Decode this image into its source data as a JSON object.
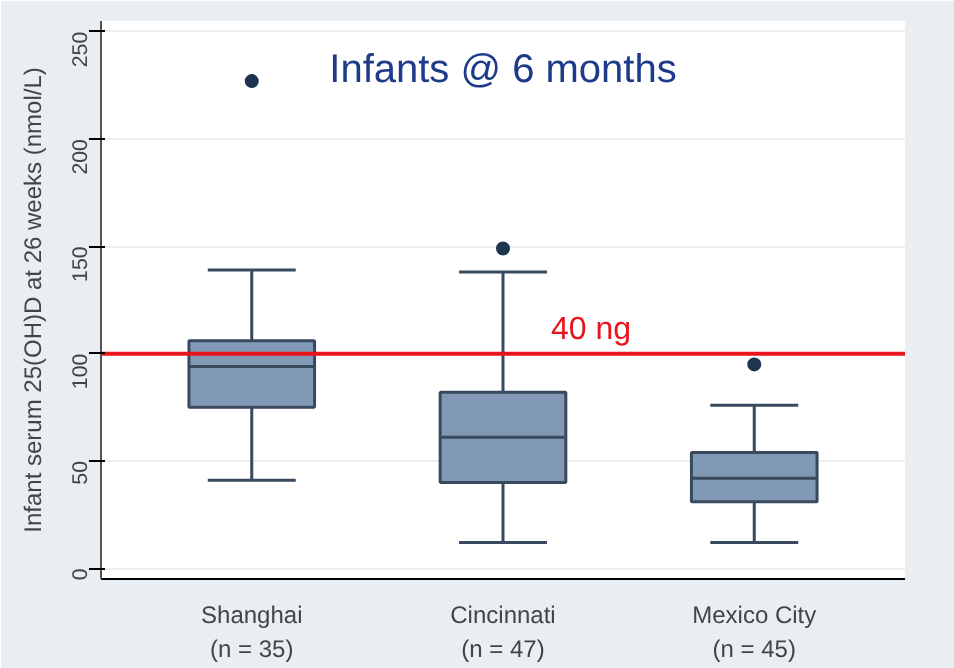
{
  "chart_data": {
    "type": "box",
    "title": "Infants @ 6 months",
    "ylabel": "Infant serum 25(OH)D at 26 weeks (nmol/L)",
    "categories": [
      "Shanghai\n(n = 35)",
      "Cincinnati\n(n = 47)",
      "Mexico City\n(n = 45)"
    ],
    "boxes": [
      {
        "low": 41,
        "q1": 75,
        "median": 94,
        "q3": 106,
        "high": 139,
        "outliers": [
          227
        ]
      },
      {
        "low": 12,
        "q1": 40,
        "median": 61,
        "q3": 82,
        "high": 138,
        "outliers": [
          149
        ]
      },
      {
        "low": 12,
        "q1": 31,
        "median": 42,
        "q3": 54,
        "high": 76,
        "outliers": [
          95
        ]
      }
    ],
    "color": "#8299b5",
    "ylim": [
      -5,
      255
    ],
    "yticks": [
      0,
      50,
      100,
      150,
      200,
      250
    ],
    "grid": "y",
    "ref_lines": [
      {
        "axis": "y",
        "value": 100,
        "label": "40 ng",
        "color": "#e8141c"
      }
    ]
  }
}
